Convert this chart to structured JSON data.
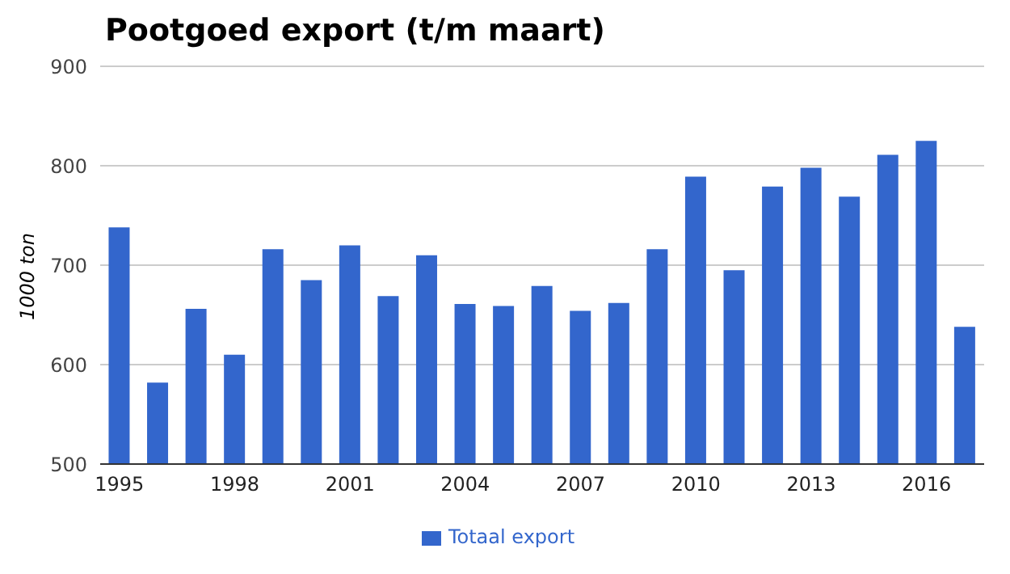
{
  "chart_data": {
    "type": "bar",
    "title": "Pootgoed export (t/m maart)",
    "ylabel": "1000 ton",
    "categories": [
      "1995",
      null,
      null,
      "1998",
      null,
      null,
      "2001",
      null,
      null,
      "2004",
      null,
      null,
      "2007",
      null,
      null,
      "2010",
      null,
      null,
      "2013",
      null,
      null,
      "2016",
      null
    ],
    "series": [
      {
        "name": "Totaal export",
        "color": "#3366cc",
        "values": [
          738,
          582,
          656,
          610,
          716,
          685,
          720,
          669,
          710,
          661,
          659,
          679,
          654,
          662,
          716,
          789,
          695,
          779,
          798,
          769,
          811,
          825,
          638
        ]
      }
    ],
    "ylim": [
      500,
      900
    ],
    "yticks": [
      500,
      600,
      700,
      800,
      900
    ],
    "grid": "y",
    "legend": "bottom"
  }
}
